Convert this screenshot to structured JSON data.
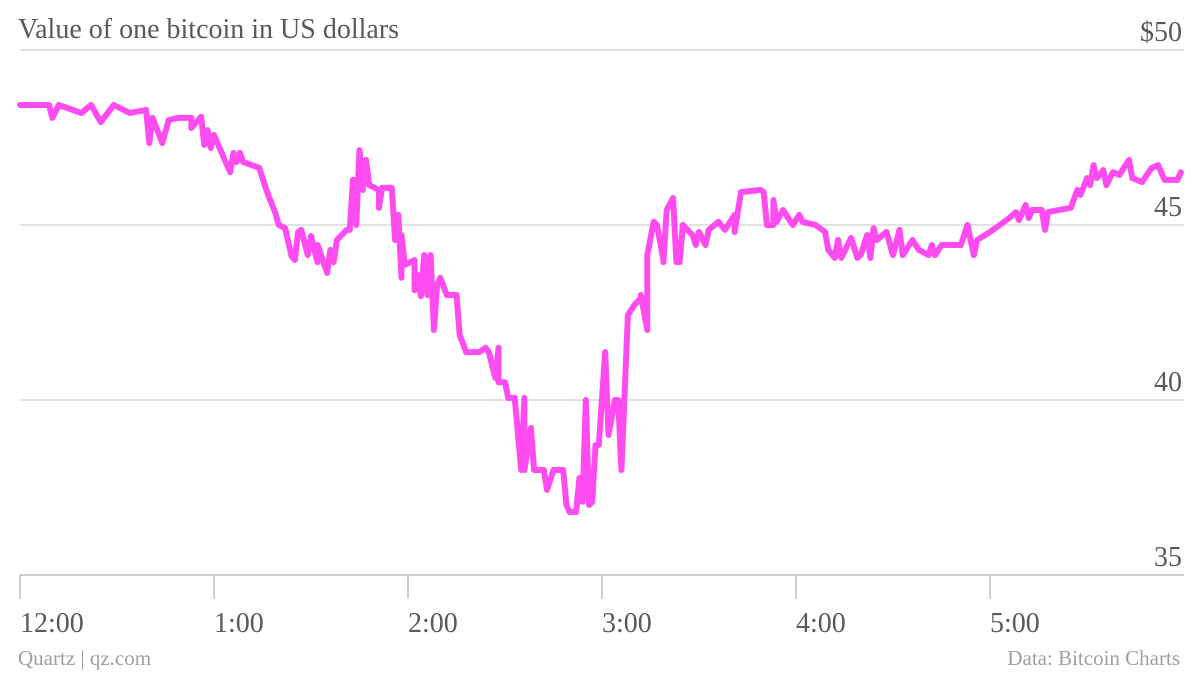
{
  "chart_data": {
    "type": "line",
    "title": "Value of one bitcoin in US dollars",
    "xlabel": "",
    "ylabel": "",
    "ylim": [
      35,
      50
    ],
    "xlim": [
      "12:00",
      "6:00"
    ],
    "yticks": [
      {
        "value": 50,
        "label": "$50"
      },
      {
        "value": 45,
        "label": "45"
      },
      {
        "value": 40,
        "label": "40"
      },
      {
        "value": 35,
        "label": "35"
      }
    ],
    "xticks": [
      "12:00",
      "1:00",
      "2:00",
      "3:00",
      "4:00",
      "5:00"
    ],
    "grid": true,
    "line_color": "#ff4cf0",
    "series": [
      {
        "x": [
          "12:00",
          "12:09",
          "12:10",
          "12:12",
          "12:19",
          "12:22",
          "12:25",
          "12:29",
          "12:34",
          "12:39",
          "12:40",
          "12:41",
          "12:44",
          "12:46",
          "12:49",
          "12:53",
          "12:53",
          "12:56",
          "12:57",
          "12:58",
          "12:59",
          "1:00",
          "1:02",
          "1:05",
          "1:06",
          "1:07",
          "1:08",
          "1:09",
          "1:14",
          "1:16",
          "1:17",
          "1:19",
          "1:20",
          "1:22",
          "1:24",
          "1:25",
          "1:26",
          "1:27",
          "1:29",
          "1:30",
          "1:32",
          "1:32",
          "1:35",
          "1:36",
          "1:37",
          "1:38",
          "1:41",
          "1:42",
          "1:43",
          "1:44",
          "1:45",
          "1:46",
          "1:47",
          "1:48",
          "1:51",
          "1:51",
          "1:52",
          "1:55",
          "1:56",
          "1:57",
          "1:58",
          "1:58",
          "1:59",
          "2:02",
          "2:02",
          "2:03",
          "2:04",
          "2:05",
          "2:06",
          "2:07",
          "2:08",
          "2:09",
          "2:10",
          "2:12",
          "2:15",
          "2:16",
          "2:18",
          "2:22",
          "2:24",
          "2:25",
          "2:27",
          "2:28",
          "2:28",
          "2:30",
          "2:31",
          "2:33",
          "2:35",
          "2:36",
          "2:36",
          "2:38",
          "2:39",
          "2:42",
          "2:43",
          "2:45",
          "2:48",
          "2:49",
          "2:50",
          "2:52",
          "2:53",
          "2:54",
          "2:55",
          "2:56",
          "2:57",
          "2:58",
          "2:59",
          "3:01",
          "3:02",
          "3:04",
          "3:05",
          "3:06",
          "3:08",
          "3:10",
          "3:12",
          "3:12",
          "3:14",
          "3:14",
          "3:16",
          "3:17",
          "3:19",
          "3:19",
          "3:20",
          "3:22",
          "3:23",
          "3:24",
          "3:25",
          "3:28",
          "3:29",
          "3:30",
          "3:32",
          "3:33",
          "3:36",
          "3:38",
          "3:41",
          "3:41",
          "3:43",
          "3:49",
          "3:50",
          "3:51",
          "3:53",
          "3:53",
          "3:54",
          "3:56",
          "3:59",
          "4:01",
          "4:02",
          "4:06",
          "4:09",
          "4:10",
          "4:12",
          "4:13",
          "4:14",
          "4:17",
          "4:19",
          "4:20",
          "4:22",
          "4:23",
          "4:24",
          "4:25",
          "4:28",
          "4:30",
          "4:32",
          "4:33",
          "4:36",
          "4:38",
          "4:41",
          "4:42",
          "4:43",
          "4:45",
          "4:51",
          "4:53",
          "4:54",
          "4:55",
          "4:56",
          "5:00",
          "5:03",
          "5:06",
          "5:08",
          "5:09",
          "5:11",
          "5:12",
          "5:13",
          "5:16",
          "5:17",
          "5:18",
          "5:25",
          "5:27",
          "5:28",
          "5:30",
          "5:31",
          "5:32",
          "5:33",
          "5:35",
          "5:36",
          "5:38",
          "5:40",
          "5:43",
          "5:44",
          "5:47",
          "5:50",
          "5:52",
          "5:54",
          "5:58",
          "5:59"
        ],
        "y": [
          48.43,
          48.43,
          48.06,
          48.43,
          48.2,
          48.43,
          47.94,
          48.43,
          48.2,
          48.29,
          47.34,
          48.06,
          47.34,
          48.0,
          48.06,
          48.06,
          47.77,
          48.09,
          47.29,
          47.71,
          47.2,
          47.57,
          47.14,
          46.51,
          47.06,
          46.8,
          47.06,
          46.8,
          46.63,
          46.06,
          45.8,
          45.34,
          45.0,
          44.91,
          44.11,
          44.0,
          44.8,
          44.86,
          44.14,
          44.69,
          43.94,
          44.43,
          43.63,
          44.29,
          43.94,
          44.57,
          44.86,
          44.86,
          46.29,
          45.0,
          47.14,
          46.0,
          46.86,
          46.14,
          46.0,
          45.49,
          46.06,
          46.06,
          44.57,
          45.29,
          43.49,
          44.71,
          43.86,
          44.0,
          43.14,
          43.57,
          42.97,
          44.14,
          43.0,
          44.14,
          42.0,
          43.29,
          43.49,
          43.0,
          43.0,
          41.86,
          41.37,
          41.37,
          41.49,
          41.37,
          40.63,
          41.49,
          40.51,
          40.51,
          40.06,
          40.06,
          38.0,
          40.06,
          38.0,
          39.2,
          38.0,
          38.0,
          37.43,
          38.0,
          38.0,
          37.0,
          36.8,
          36.8,
          37.77,
          37.09,
          40.0,
          37.0,
          37.09,
          38.71,
          38.71,
          41.37,
          39.0,
          40.0,
          40.0,
          38.0,
          42.43,
          42.71,
          42.91,
          43.0,
          42.0,
          44.14,
          45.09,
          45.0,
          44.0,
          43.94,
          45.43,
          45.77,
          43.94,
          43.94,
          45.0,
          44.71,
          44.43,
          44.8,
          44.43,
          44.86,
          45.09,
          44.86,
          45.29,
          44.8,
          45.94,
          46.0,
          45.94,
          45.0,
          45.0,
          45.71,
          45.09,
          45.43,
          45.0,
          45.29,
          45.09,
          45.0,
          44.8,
          44.29,
          44.06,
          44.57,
          44.06,
          44.63,
          44.06,
          44.14,
          44.71,
          44.06,
          44.91,
          44.57,
          44.8,
          44.14,
          44.86,
          44.14,
          44.57,
          44.29,
          44.14,
          44.43,
          44.14,
          44.43,
          44.43,
          45.0,
          44.57,
          44.14,
          44.57,
          44.8,
          45.0,
          45.2,
          45.37,
          45.14,
          45.57,
          45.2,
          45.43,
          45.43,
          44.86,
          45.37,
          45.49,
          46.0,
          45.86,
          46.34,
          46.14,
          46.71,
          46.34,
          46.57,
          46.14,
          46.51,
          46.43,
          46.86,
          46.34,
          46.23,
          46.63,
          46.71,
          46.29,
          46.29,
          46.51
        ]
      }
    ]
  },
  "footer": {
    "source_left": "Quartz | qz.com",
    "source_right": "Data: Bitcoin Charts"
  }
}
